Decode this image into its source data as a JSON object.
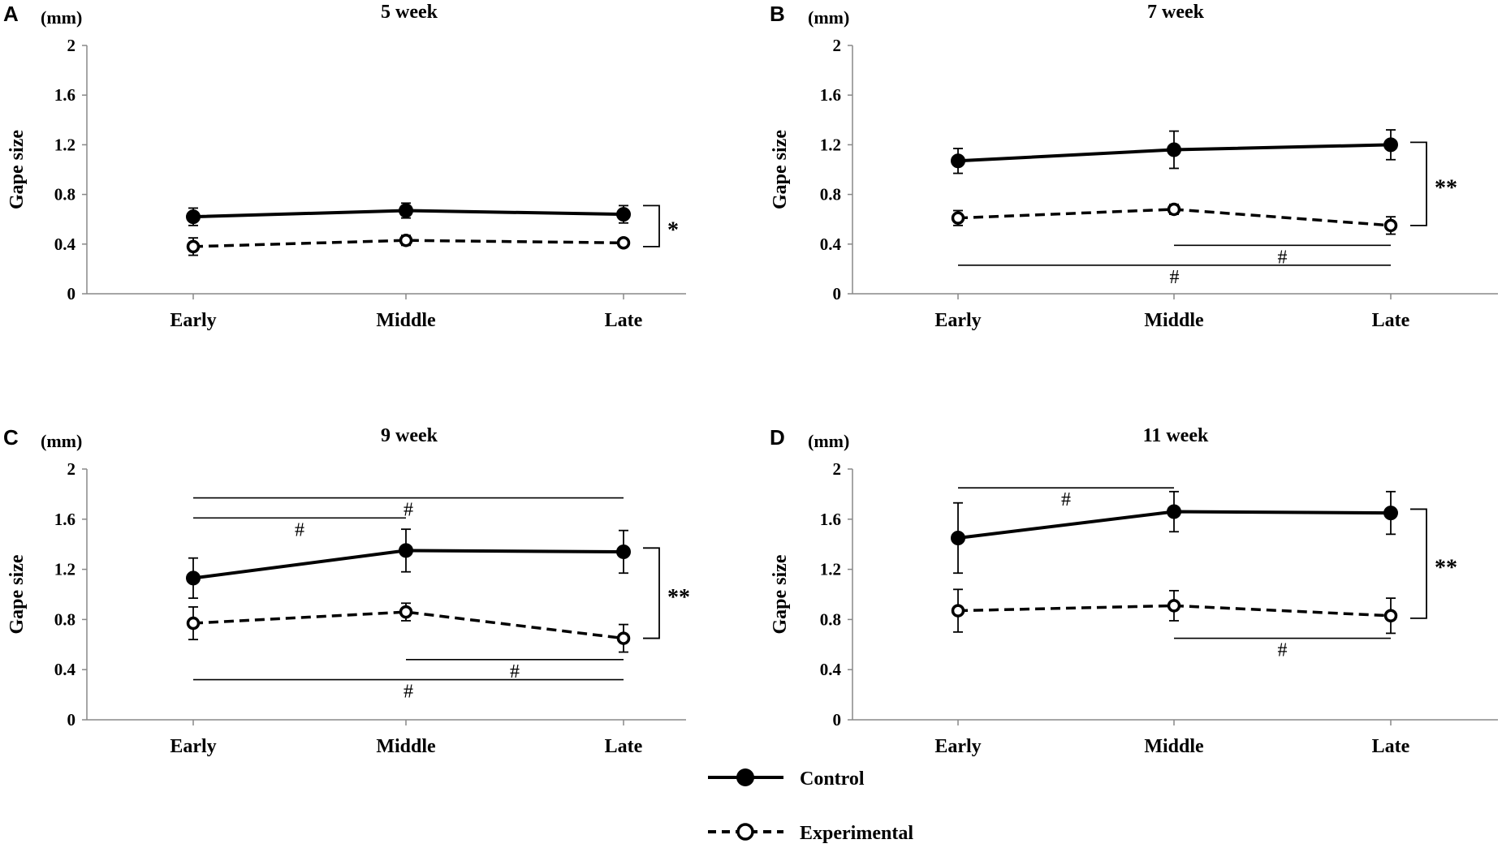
{
  "chart_data": [
    {
      "type": "line",
      "panel": "A",
      "title": "5 week",
      "unit": "(mm)",
      "ylabel": "Gape size",
      "xlabel": "",
      "categories": [
        "Early",
        "Middle",
        "Late"
      ],
      "ylim": [
        0,
        2
      ],
      "yticks": [
        "0",
        "0.4",
        "0.8",
        "1.2",
        "1.6",
        "2"
      ],
      "series": [
        {
          "name": "Control",
          "values": [
            0.62,
            0.67,
            0.64
          ],
          "errors": [
            0.07,
            0.06,
            0.07
          ]
        },
        {
          "name": "Experimental",
          "values": [
            0.38,
            0.43,
            0.41
          ],
          "errors": [
            0.07,
            0.04,
            0.03
          ]
        }
      ],
      "annotations": [
        {
          "label": "*",
          "type": "bracket",
          "y_range": [
            0.38,
            0.71
          ]
        }
      ]
    },
    {
      "type": "line",
      "panel": "B",
      "title": "7 week",
      "unit": "(mm)",
      "ylabel": "Gape size",
      "xlabel": "",
      "categories": [
        "Early",
        "Middle",
        "Late"
      ],
      "ylim": [
        0,
        2
      ],
      "yticks": [
        "0",
        "0.4",
        "0.8",
        "1.2",
        "1.6",
        "2"
      ],
      "series": [
        {
          "name": "Control",
          "values": [
            1.07,
            1.16,
            1.2
          ],
          "errors": [
            0.1,
            0.15,
            0.12
          ]
        },
        {
          "name": "Experimental",
          "values": [
            0.61,
            0.68,
            0.55
          ],
          "errors": [
            0.06,
            0.04,
            0.07
          ]
        }
      ],
      "annotations": [
        {
          "label": "**",
          "type": "bracket",
          "y_range": [
            0.55,
            1.22
          ]
        },
        {
          "label": "#",
          "type": "hline",
          "from": 1,
          "to": 2,
          "y": 0.39
        },
        {
          "label": "#",
          "type": "hline",
          "from": 0,
          "to": 2,
          "y": 0.23
        }
      ]
    },
    {
      "type": "line",
      "panel": "C",
      "title": "9 week",
      "unit": "(mm)",
      "ylabel": "Gape size",
      "xlabel": "",
      "categories": [
        "Early",
        "Middle",
        "Late"
      ],
      "ylim": [
        0,
        2
      ],
      "yticks": [
        "0",
        "0.4",
        "0.8",
        "1.2",
        "1.6",
        "2"
      ],
      "series": [
        {
          "name": "Control",
          "values": [
            1.13,
            1.35,
            1.34
          ],
          "errors": [
            0.16,
            0.17,
            0.17
          ]
        },
        {
          "name": "Experimental",
          "values": [
            0.77,
            0.86,
            0.65
          ],
          "errors": [
            0.13,
            0.07,
            0.11
          ]
        }
      ],
      "annotations": [
        {
          "label": "#",
          "type": "hline",
          "from": 0,
          "to": 2,
          "y": 1.77
        },
        {
          "label": "#",
          "type": "hline",
          "from": 0,
          "to": 1,
          "y": 1.61
        },
        {
          "label": "**",
          "type": "bracket",
          "y_range": [
            0.65,
            1.37
          ]
        },
        {
          "label": "#",
          "type": "hline",
          "from": 1,
          "to": 2,
          "y": 0.48
        },
        {
          "label": "#",
          "type": "hline",
          "from": 0,
          "to": 2,
          "y": 0.32
        }
      ]
    },
    {
      "type": "line",
      "panel": "D",
      "title": "11 week",
      "unit": "(mm)",
      "ylabel": "Gape size",
      "xlabel": "",
      "categories": [
        "Early",
        "Middle",
        "Late"
      ],
      "ylim": [
        0,
        2
      ],
      "yticks": [
        "0",
        "0.4",
        "0.8",
        "1.2",
        "1.6",
        "2"
      ],
      "series": [
        {
          "name": "Control",
          "values": [
            1.45,
            1.66,
            1.65
          ],
          "errors": [
            0.28,
            0.16,
            0.17
          ]
        },
        {
          "name": "Experimental",
          "values": [
            0.87,
            0.91,
            0.83
          ],
          "errors": [
            0.17,
            0.12,
            0.14
          ]
        }
      ],
      "annotations": [
        {
          "label": "#",
          "type": "hline",
          "from": 0,
          "to": 1,
          "y": 1.85
        },
        {
          "label": "**",
          "type": "bracket",
          "y_range": [
            0.81,
            1.68
          ]
        },
        {
          "label": "#",
          "type": "hline",
          "from": 1,
          "to": 2,
          "y": 0.65
        }
      ]
    }
  ],
  "legend": {
    "entries": [
      {
        "name": "Control",
        "marker": "filled-circle",
        "line": "solid"
      },
      {
        "name": "Experimental",
        "marker": "open-circle",
        "line": "dashed"
      }
    ]
  }
}
